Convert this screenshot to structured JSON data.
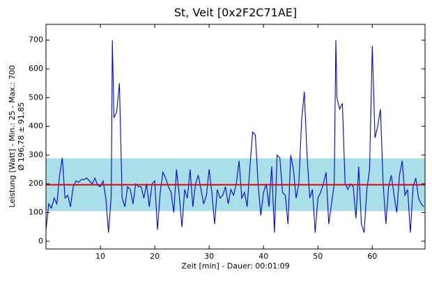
{
  "chart_data": {
    "type": "line",
    "title": "St, Veit [0x2F2C71AE]",
    "x_label": "Zeit [min] - Dauer: 00:01:09",
    "y_label": "Leistung [Watt] - Min.: 25 - Max.: 700",
    "y_label_stats": "Ø 196,78 ± 91,85",
    "mean": 196.78,
    "std": 91.85,
    "mean_color": "#e00000",
    "band_color": "#a9dfe8",
    "xlim": [
      0,
      69.7
    ],
    "ylim": [
      -27,
      755
    ],
    "xticks": [
      10,
      20,
      30,
      40,
      50,
      60
    ],
    "yticks": [
      0,
      100,
      200,
      300,
      400,
      500,
      600,
      700
    ],
    "x": [
      0,
      0.5,
      1,
      1.5,
      2,
      2.5,
      3,
      3.5,
      4,
      4.5,
      5,
      5.5,
      6,
      6.5,
      7,
      7.5,
      8,
      8.5,
      9,
      9.5,
      10,
      10.5,
      11,
      11.5,
      12,
      12.2,
      12.5,
      13,
      13.5,
      14,
      14.5,
      15,
      15.5,
      16,
      16.5,
      17,
      17.5,
      18,
      18.5,
      19,
      19.5,
      20,
      20.5,
      21,
      21.5,
      22,
      22.5,
      23,
      23.5,
      24,
      24.5,
      25,
      25.5,
      26,
      26.5,
      27,
      27.5,
      28,
      28.5,
      29,
      29.5,
      30,
      30.5,
      31,
      31.5,
      32,
      32.5,
      33,
      33.5,
      34,
      34.5,
      35,
      35.5,
      36,
      36.5,
      37,
      37.5,
      38,
      38.5,
      39,
      39.5,
      40,
      40.5,
      41,
      41.5,
      42,
      42.5,
      43,
      43.5,
      44,
      44.5,
      45,
      45.5,
      46,
      46.5,
      47,
      47.5,
      48,
      48.5,
      49,
      49.5,
      50,
      50.5,
      51,
      51.5,
      52,
      52.5,
      53,
      53.3,
      53.5,
      54,
      54.5,
      55,
      55.5,
      56,
      56.5,
      57,
      57.5,
      58,
      58.5,
      59,
      59.5,
      60,
      60.5,
      61,
      61.5,
      62,
      62.5,
      63,
      63.5,
      64,
      64.5,
      65,
      65.5,
      66,
      66.5,
      67,
      67.5,
      68,
      68.5,
      69,
      69.5
    ],
    "series": [
      {
        "name": "Leistung",
        "color": "#0000e0",
        "values": [
          40,
          130,
          115,
          150,
          130,
          230,
          290,
          150,
          160,
          120,
          190,
          210,
          205,
          215,
          215,
          220,
          210,
          200,
          220,
          195,
          190,
          210,
          150,
          30,
          160,
          700,
          430,
          450,
          550,
          150,
          120,
          190,
          180,
          130,
          200,
          190,
          190,
          150,
          200,
          120,
          200,
          210,
          40,
          170,
          240,
          220,
          190,
          170,
          100,
          250,
          160,
          50,
          180,
          150,
          250,
          120,
          200,
          230,
          180,
          130,
          160,
          250,
          170,
          60,
          180,
          150,
          160,
          190,
          130,
          180,
          160,
          200,
          280,
          150,
          170,
          120,
          260,
          380,
          370,
          200,
          90,
          170,
          200,
          120,
          260,
          30,
          300,
          290,
          170,
          160,
          60,
          300,
          250,
          150,
          200,
          420,
          520,
          300,
          150,
          180,
          30,
          150,
          170,
          200,
          240,
          60,
          130,
          200,
          700,
          500,
          460,
          480,
          200,
          180,
          200,
          190,
          80,
          260,
          60,
          30,
          180,
          250,
          680,
          360,
          400,
          460,
          200,
          60,
          190,
          230,
          160,
          100,
          230,
          280,
          160,
          180,
          30,
          190,
          220,
          150,
          130,
          120
        ]
      }
    ]
  }
}
